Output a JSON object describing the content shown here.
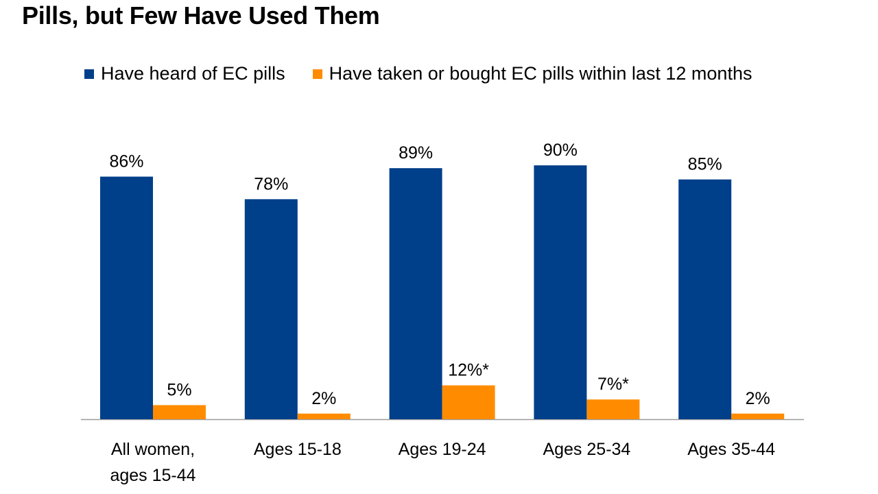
{
  "title": "Pills, but Few Have Used Them",
  "chart_data": {
    "type": "bar",
    "categories": [
      [
        "All women,",
        "ages 15-44"
      ],
      [
        "Ages 15-18"
      ],
      [
        "Ages 19-24"
      ],
      [
        "Ages 25-34"
      ],
      [
        "Ages 35-44"
      ]
    ],
    "series": [
      {
        "name": "Have heard of EC pills",
        "color": "#003f8a",
        "values": [
          86,
          78,
          89,
          90,
          85
        ],
        "labels": [
          "86%",
          "78%",
          "89%",
          "90%",
          "85%"
        ]
      },
      {
        "name": "Have taken or bought EC pills within last 12 months",
        "color": "#ff8c00",
        "values": [
          5,
          2,
          12,
          7,
          2
        ],
        "labels": [
          "5%",
          "2%",
          "12%*",
          "7%*",
          "2%"
        ]
      }
    ],
    "ylim": [
      0,
      90
    ],
    "xlabel": "",
    "ylabel": "",
    "legend": "top"
  }
}
